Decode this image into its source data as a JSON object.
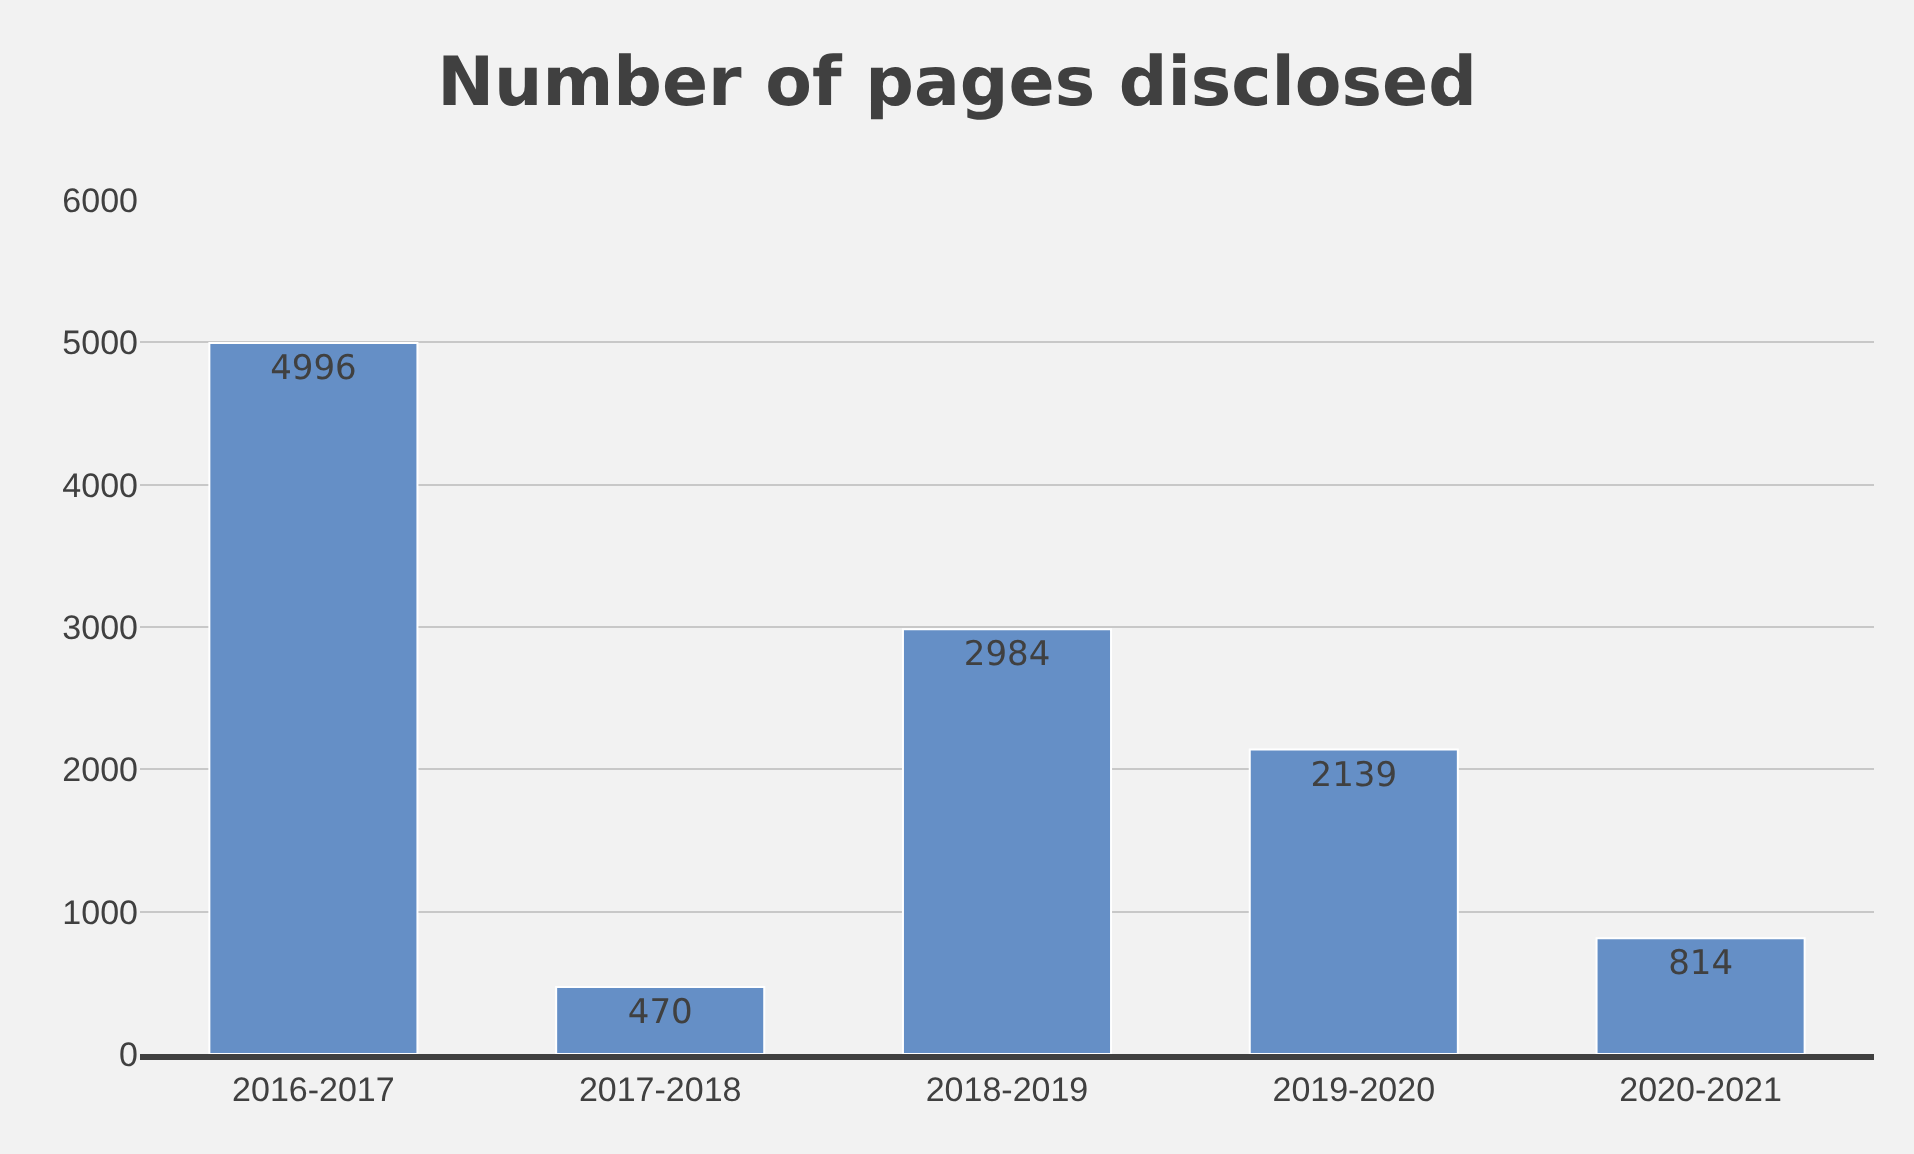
{
  "chart_data": {
    "type": "bar",
    "title": "Number of pages disclosed",
    "categories": [
      "2016-2017",
      "2017-2018",
      "2018-2019",
      "2019-2020",
      "2020-2021"
    ],
    "values": [
      4996,
      470,
      2984,
      2139,
      814
    ],
    "color": "#658fc6",
    "ylim": [
      0,
      6000
    ],
    "yticks": [
      0,
      1000,
      2000,
      3000,
      4000,
      5000,
      6000
    ],
    "grid": "y",
    "data_labels": true
  }
}
